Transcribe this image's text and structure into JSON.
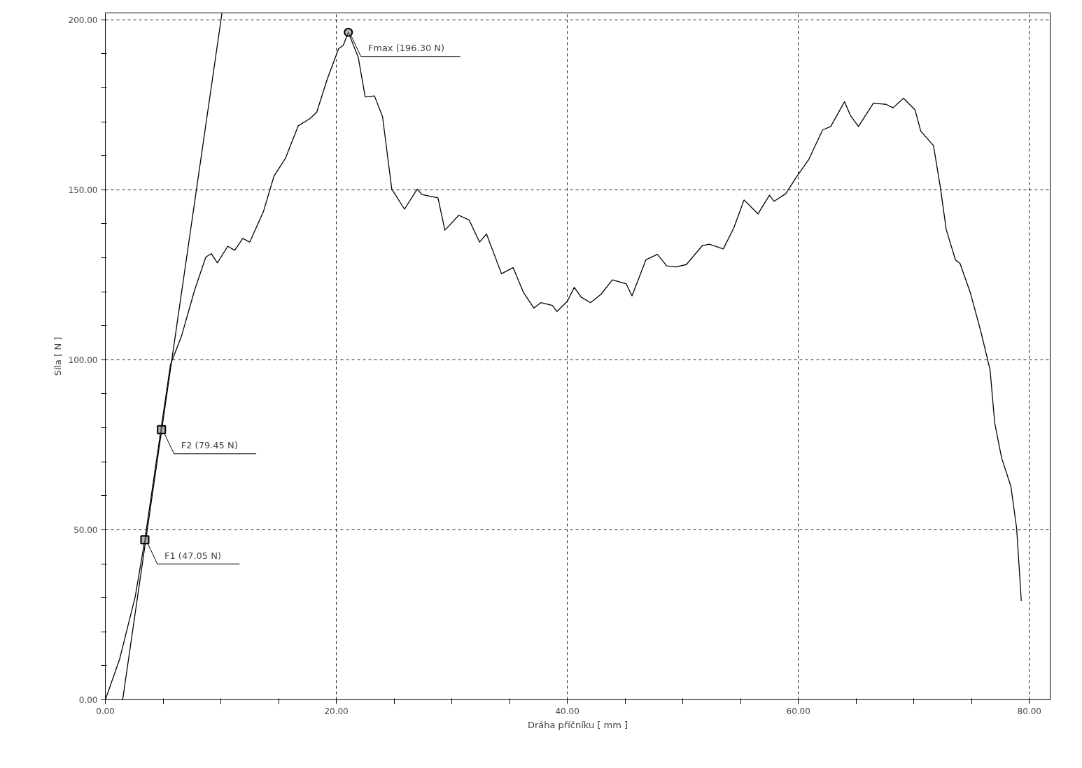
{
  "chart_data": {
    "type": "line",
    "xlabel": "Dráha příčníku [ mm ]",
    "ylabel": "Síla [ N ]",
    "xlim": [
      0,
      81.8
    ],
    "ylim": [
      0,
      202
    ],
    "xticks": [
      {
        "value": 0,
        "label": "0.00"
      },
      {
        "value": 5,
        "label": null
      },
      {
        "value": 10,
        "label": null
      },
      {
        "value": 15,
        "label": null
      },
      {
        "value": 20,
        "label": "20.00"
      },
      {
        "value": 25,
        "label": null
      },
      {
        "value": 30,
        "label": null
      },
      {
        "value": 35,
        "label": null
      },
      {
        "value": 40,
        "label": "40.00"
      },
      {
        "value": 45,
        "label": null
      },
      {
        "value": 50,
        "label": null
      },
      {
        "value": 55,
        "label": null
      },
      {
        "value": 60,
        "label": "60.00"
      },
      {
        "value": 65,
        "label": null
      },
      {
        "value": 70,
        "label": null
      },
      {
        "value": 75,
        "label": null
      },
      {
        "value": 80,
        "label": "80.00"
      }
    ],
    "yticks": [
      {
        "value": 0,
        "label": "0.00"
      },
      {
        "value": 10,
        "label": null
      },
      {
        "value": 20,
        "label": null
      },
      {
        "value": 30,
        "label": null
      },
      {
        "value": 40,
        "label": null
      },
      {
        "value": 50,
        "label": "50.00"
      },
      {
        "value": 60,
        "label": null
      },
      {
        "value": 70,
        "label": null
      },
      {
        "value": 80,
        "label": null
      },
      {
        "value": 90,
        "label": null
      },
      {
        "value": 100,
        "label": "100.00"
      },
      {
        "value": 110,
        "label": null
      },
      {
        "value": 120,
        "label": null
      },
      {
        "value": 130,
        "label": null
      },
      {
        "value": 140,
        "label": null
      },
      {
        "value": 150,
        "label": "150.00"
      },
      {
        "value": 160,
        "label": null
      },
      {
        "value": 170,
        "label": null
      },
      {
        "value": 180,
        "label": null
      },
      {
        "value": 190,
        "label": null
      },
      {
        "value": 200,
        "label": "200.00"
      }
    ],
    "grid": true,
    "line_style": "solid",
    "marker": "none",
    "series": [
      {
        "color": "#000000",
        "x": [
          0,
          1.24,
          2.58,
          3.42,
          4.8,
          5.64,
          6.6,
          7.73,
          8.7,
          9.17,
          9.7,
          10.6,
          11.2,
          11.9,
          12.5,
          13.7,
          14.6,
          15.6,
          16.7,
          17.7,
          18.3,
          19.2,
          20.2,
          20.6,
          21.04,
          21.9,
          22.5,
          23.3,
          24.0,
          24.8,
          25.9,
          27.0,
          27.4,
          28.8,
          29.4,
          30.6,
          31.5,
          32.4,
          33.0,
          34.3,
          35.3,
          36.2,
          37.1,
          37.7,
          38.7,
          39.1,
          40.0,
          40.6,
          41.2,
          42.0,
          42.9,
          43.9,
          45.1,
          45.6,
          46.8,
          47.8,
          48.6,
          49.4,
          50.3,
          51.7,
          52.3,
          53.5,
          54.4,
          55.3,
          56.5,
          57.5,
          57.9,
          58.9,
          59.8,
          60.9,
          62.1,
          62.8,
          64.0,
          64.5,
          65.2,
          66.5,
          67.6,
          68.2,
          69.1,
          70.1,
          70.6,
          71.7,
          72.3,
          72.8,
          73.6,
          74.0,
          74.9,
          75.8,
          76.6,
          77.0,
          77.6,
          78.4,
          78.9,
          79.3
        ],
        "values": [
          0,
          12.0,
          30.2,
          47.0,
          79.1,
          98.6,
          107,
          120.5,
          130.2,
          131.2,
          128.5,
          133.4,
          132.2,
          135.7,
          134.6,
          143.7,
          154,
          159.3,
          168.8,
          170.9,
          172.8,
          182.4,
          191.5,
          192.5,
          196.3,
          188.9,
          177.3,
          177.6,
          171.5,
          150.2,
          144.3,
          150.2,
          148.6,
          147.6,
          138.1,
          142.5,
          141.1,
          134.6,
          137.0,
          125.3,
          127.1,
          119.8,
          115.2,
          116.8,
          116.0,
          114.2,
          117.2,
          121.3,
          118.4,
          116.8,
          119.2,
          123.5,
          122.3,
          118.8,
          129.4,
          131.0,
          127.6,
          127.3,
          128.0,
          133.6,
          134.0,
          132.6,
          138.7,
          147.0,
          142.9,
          148.4,
          146.6,
          148.8,
          153.6,
          158.9,
          167.6,
          168.6,
          175.9,
          171.9,
          168.6,
          175.5,
          175.1,
          174.1,
          176.9,
          173.5,
          167.2,
          163.0,
          150.6,
          138.3,
          129.4,
          128.3,
          119.6,
          108.3,
          97.0,
          81.4,
          71.1,
          62.8,
          50.4,
          29.1
        ]
      },
      {
        "type": "line",
        "color": "#000000",
        "x": [
          1.5,
          10.1
        ],
        "values": [
          0,
          202
        ]
      },
      {
        "type": "scatter",
        "marker": "square",
        "color": "#000000",
        "x": [
          3.42,
          4.86
        ],
        "values": [
          47.05,
          79.45
        ]
      },
      {
        "type": "scatter",
        "marker": "circle",
        "color": "#000000",
        "x": [
          21.04
        ],
        "values": [
          196.3
        ]
      }
    ],
    "annotations": [
      {
        "text": "Fmax (196.30 N)",
        "x": 21.04,
        "y": 196.3
      },
      {
        "text": "F2 (79.45 N)",
        "x": 4.86,
        "y": 79.45
      },
      {
        "text": "F1 (47.05 N)",
        "x": 3.42,
        "y": 47.05
      }
    ]
  }
}
